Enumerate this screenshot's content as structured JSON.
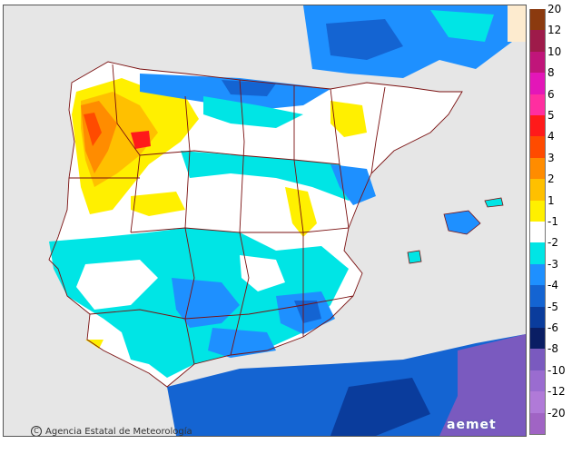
{
  "credit": "Agencia Estatal de Meteorología",
  "logo_text": "aemet",
  "legend": {
    "items": [
      {
        "label": "20",
        "color": "#8b3a0f"
      },
      {
        "label": "12",
        "color": "#9e1b4a"
      },
      {
        "label": "10",
        "color": "#c0157a"
      },
      {
        "label": "8",
        "color": "#e316b8"
      },
      {
        "label": "6",
        "color": "#ff2ea0"
      },
      {
        "label": "5",
        "color": "#ff1a1a"
      },
      {
        "label": "4",
        "color": "#ff4b00"
      },
      {
        "label": "3",
        "color": "#ff8c00"
      },
      {
        "label": "2",
        "color": "#ffc000"
      },
      {
        "label": "1",
        "color": "#fff000"
      },
      {
        "label": "-1",
        "color": "#ffffff"
      },
      {
        "label": "-2",
        "color": "#00e5e5"
      },
      {
        "label": "-3",
        "color": "#1e90ff"
      },
      {
        "label": "-4",
        "color": "#1464d2"
      },
      {
        "label": "-5",
        "color": "#0a3c9c"
      },
      {
        "label": "-6",
        "color": "#0a1e64"
      },
      {
        "label": "-8",
        "color": "#7a5abf"
      },
      {
        "label": "-10",
        "color": "#9a6cd0"
      },
      {
        "label": "-12",
        "color": "#b07ad8"
      },
      {
        "label": "-20",
        "color": "#a064c4"
      }
    ]
  },
  "colors": {
    "sea": "#e6e6e6",
    "white_land": "#ffffff",
    "border_line": "#7a1010"
  }
}
